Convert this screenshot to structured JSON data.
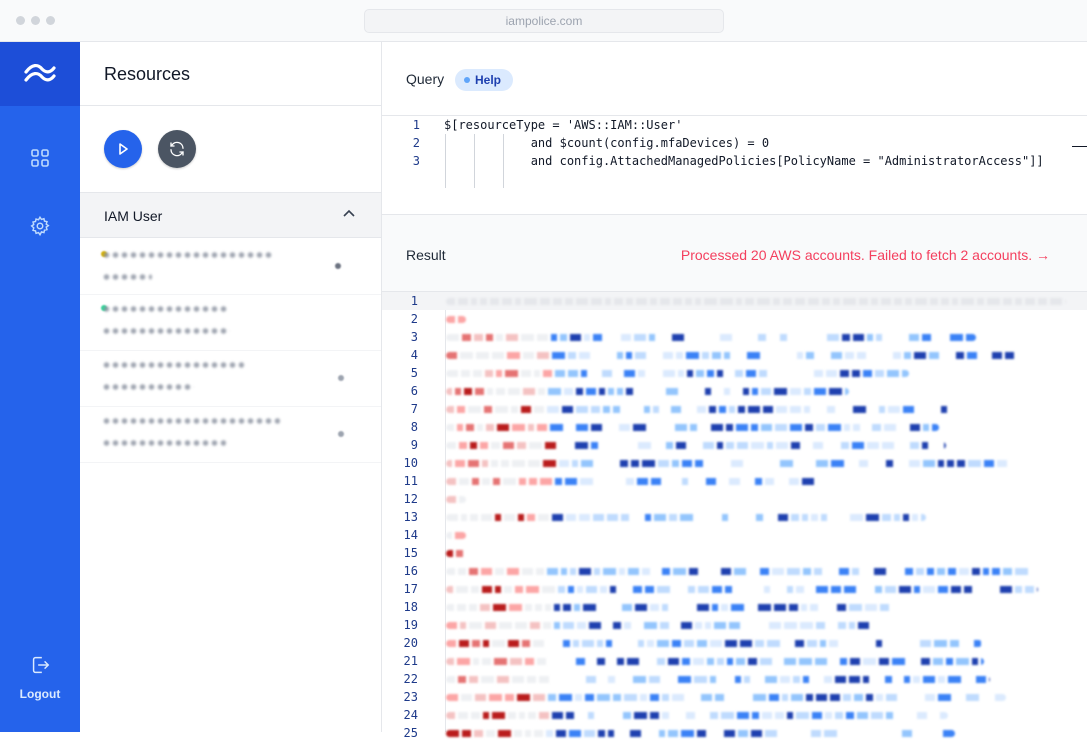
{
  "browser": {
    "url": "iampolice.com"
  },
  "sidebar": {
    "logo_icon": "wind-logo-icon",
    "nav_icons": [
      "grid-icon",
      "gear-icon"
    ],
    "logout_label": "Logout",
    "accent": "#2563eb"
  },
  "resources": {
    "title": "Resources",
    "run_icon": "play-icon",
    "refresh_icon": "refresh-icon",
    "section_label": "IAM User",
    "section_icon": "chevron-up-icon"
  },
  "query": {
    "label": "Query",
    "help_label": "Help",
    "lines": [
      {
        "num": "1",
        "text": "$[resourceType = 'AWS::IAM::User'"
      },
      {
        "num": "2",
        "text": "            and $count(config.mfaDevices) = 0"
      },
      {
        "num": "3",
        "text": "            and config.AttachedManagedPolicies[PolicyName = \"AdministratorAccess\"]]"
      }
    ]
  },
  "result": {
    "label": "Result",
    "status": "Processed 20 AWS accounts. Failed to fetch 2 accounts. →",
    "status_color": "#f43f5e",
    "line_numbers": [
      "1",
      "2",
      "3",
      "4",
      "5",
      "6",
      "7",
      "8",
      "9",
      "10",
      "11",
      "12",
      "13",
      "14",
      "15",
      "16",
      "17",
      "18",
      "19",
      "20",
      "21",
      "22",
      "23",
      "24",
      "25"
    ]
  }
}
